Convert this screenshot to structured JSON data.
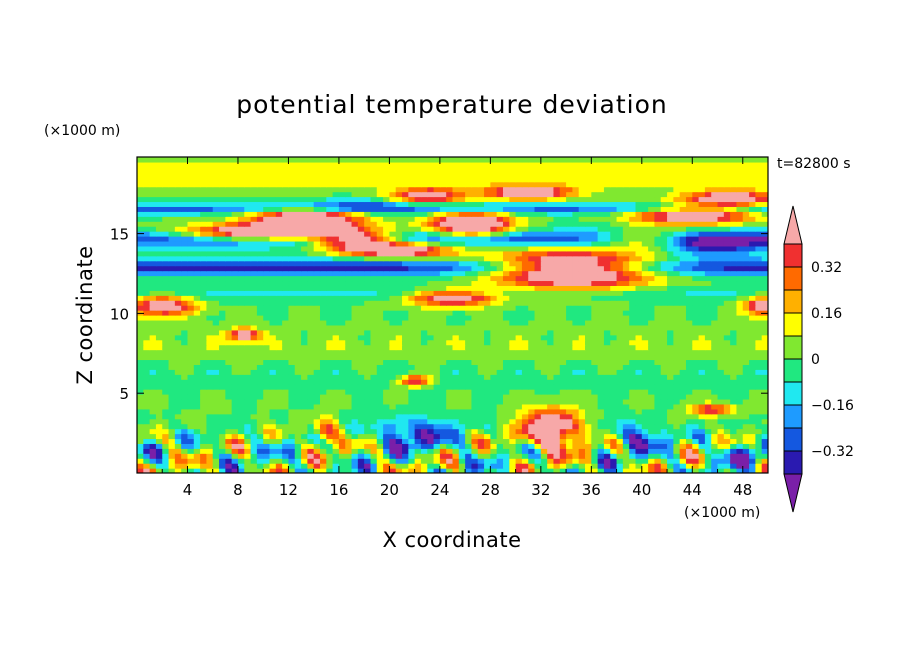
{
  "chart_data": {
    "type": "heatmap",
    "title": "potential temperature deviation",
    "xlabel": "X coordinate",
    "ylabel": "Z coordinate",
    "x_unit": "(×1000 m)",
    "y_unit": "(×1000 m)",
    "time_label": "t=82800 s",
    "xlim": [
      0,
      50
    ],
    "ylim": [
      0,
      19.8
    ],
    "x_ticks": [
      4,
      8,
      12,
      16,
      20,
      24,
      28,
      32,
      36,
      40,
      44,
      48
    ],
    "y_ticks": [
      5,
      10,
      15
    ],
    "colorbar": {
      "levels": [
        -0.4,
        -0.32,
        -0.24,
        -0.16,
        -0.08,
        0,
        0.08,
        0.16,
        0.24,
        0.32,
        0.4
      ],
      "labeled_levels": [
        0.32,
        0.16,
        0,
        -0.16,
        -0.32
      ],
      "colors": [
        "#7a1fa8",
        "#2a1ab0",
        "#1458e0",
        "#1e9bff",
        "#20e8f0",
        "#20e880",
        "#80e830",
        "#ffff00",
        "#ffb000",
        "#ff6a00",
        "#f03030",
        "#f7a8a8"
      ]
    }
  }
}
